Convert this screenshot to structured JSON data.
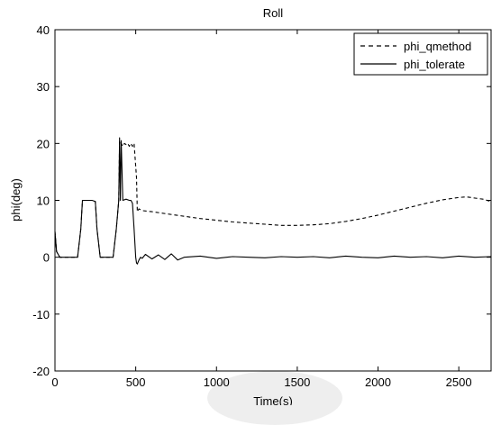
{
  "chart_data": {
    "type": "line",
    "title": "Roll",
    "xlabel": "Time(s)",
    "ylabel": "phi(deg)",
    "xlim": [
      0,
      2700
    ],
    "ylim": [
      -20,
      40
    ],
    "xticks": [
      0,
      500,
      1000,
      1500,
      2000,
      2500
    ],
    "yticks": [
      -20,
      -10,
      0,
      10,
      20,
      30,
      40
    ],
    "grid": false,
    "legend_position": "top-right",
    "series": [
      {
        "name": "phi_qmethod",
        "style": "dashed",
        "color": "#000000",
        "x": [
          0,
          10,
          30,
          100,
          120,
          140,
          160,
          170,
          230,
          250,
          260,
          280,
          300,
          360,
          380,
          395,
          400,
          410,
          420,
          430,
          440,
          450,
          460,
          470,
          480,
          490,
          500,
          505,
          510,
          520,
          540,
          600,
          700,
          800,
          900,
          1000,
          1100,
          1200,
          1300,
          1400,
          1500,
          1600,
          1700,
          1800,
          1900,
          2000,
          2100,
          2200,
          2300,
          2400,
          2500,
          2550,
          2600,
          2650,
          2700
        ],
        "y": [
          4.5,
          1,
          0,
          0,
          0,
          0,
          5,
          10,
          10,
          9.8,
          5,
          0,
          0,
          0,
          5,
          10,
          20.5,
          20,
          19.5,
          20,
          19.8,
          20,
          19.5,
          20,
          19.5,
          20,
          16,
          14,
          8,
          8.5,
          8.2,
          8,
          7.6,
          7.2,
          6.8,
          6.5,
          6.2,
          6,
          5.8,
          5.6,
          5.6,
          5.7,
          5.9,
          6.3,
          6.8,
          7.4,
          8.1,
          8.8,
          9.5,
          10.1,
          10.5,
          10.6,
          10.4,
          10.2,
          9.8
        ]
      },
      {
        "name": "phi_tolerate",
        "style": "solid",
        "color": "#000000",
        "x": [
          0,
          10,
          30,
          100,
          120,
          140,
          160,
          170,
          230,
          250,
          260,
          280,
          300,
          360,
          380,
          395,
          400,
          405,
          410,
          420,
          440,
          460,
          470,
          480,
          490,
          500,
          505,
          510,
          520,
          530,
          540,
          560,
          600,
          640,
          680,
          720,
          760,
          800,
          900,
          1000,
          1100,
          1200,
          1300,
          1400,
          1500,
          1600,
          1700,
          1800,
          1900,
          2000,
          2100,
          2200,
          2300,
          2400,
          2500,
          2600,
          2700
        ],
        "y": [
          4.5,
          1,
          0,
          0,
          0,
          0,
          5,
          10,
          10,
          9.8,
          5,
          0,
          0,
          0,
          5,
          10,
          21,
          10,
          20.5,
          10,
          10.2,
          10,
          10,
          9.5,
          5,
          0,
          -1,
          -1.2,
          -0.5,
          0,
          -0.2,
          0.5,
          -0.3,
          0.4,
          -0.4,
          0.6,
          -0.5,
          0,
          0.2,
          -0.2,
          0.1,
          0,
          -0.1,
          0.1,
          0,
          0.1,
          -0.1,
          0.2,
          0,
          -0.1,
          0.2,
          0,
          0.1,
          -0.1,
          0.2,
          0,
          0.1
        ]
      }
    ]
  }
}
